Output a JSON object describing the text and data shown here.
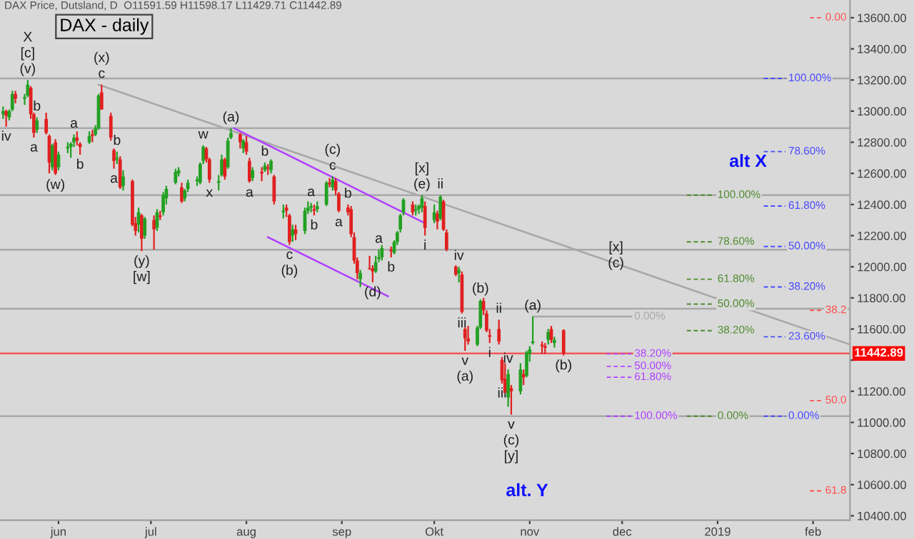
{
  "chart_data": {
    "type": "candlestick",
    "title": "DAX - daily",
    "subtitle": "DAX Price, Dutsland, D  O11591.59 H11598.17 L11429.71 C11442.89",
    "x": [
      "2018-05-14",
      "2018-05-15",
      "2018-05-16",
      "2018-05-17",
      "2018-05-18",
      "2018-05-21",
      "2018-05-22",
      "2018-05-23",
      "2018-05-24",
      "2018-05-25",
      "2018-05-28",
      "2018-05-29",
      "2018-05-30",
      "2018-05-31",
      "2018-06-01",
      "2018-06-04",
      "2018-06-05",
      "2018-06-06",
      "2018-06-07",
      "2018-06-08",
      "2018-06-11",
      "2018-06-12",
      "2018-06-13",
      "2018-06-14",
      "2018-06-15",
      "2018-06-18",
      "2018-06-19",
      "2018-06-20",
      "2018-06-21",
      "2018-06-22",
      "2018-06-25",
      "2018-06-26",
      "2018-06-27",
      "2018-06-28",
      "2018-06-29",
      "2018-07-02",
      "2018-07-03",
      "2018-07-04",
      "2018-07-05",
      "2018-07-06",
      "2018-07-09",
      "2018-07-10",
      "2018-07-11",
      "2018-07-12",
      "2018-07-13",
      "2018-07-16",
      "2018-07-17",
      "2018-07-18",
      "2018-07-19",
      "2018-07-20",
      "2018-07-23",
      "2018-07-24",
      "2018-07-25",
      "2018-07-26",
      "2018-07-27",
      "2018-07-30",
      "2018-07-31",
      "2018-08-01",
      "2018-08-02",
      "2018-08-03",
      "2018-08-06",
      "2018-08-07",
      "2018-08-08",
      "2018-08-09",
      "2018-08-10",
      "2018-08-13",
      "2018-08-14",
      "2018-08-15",
      "2018-08-16",
      "2018-08-17",
      "2018-08-20",
      "2018-08-21",
      "2018-08-22",
      "2018-08-23",
      "2018-08-24",
      "2018-08-27",
      "2018-08-28",
      "2018-08-29",
      "2018-08-30",
      "2018-08-31",
      "2018-09-03",
      "2018-09-04",
      "2018-09-05",
      "2018-09-06",
      "2018-09-07",
      "2018-09-10",
      "2018-09-11",
      "2018-09-12",
      "2018-09-13",
      "2018-09-14",
      "2018-09-17",
      "2018-09-18",
      "2018-09-19",
      "2018-09-20",
      "2018-09-21",
      "2018-09-24",
      "2018-09-25",
      "2018-09-26",
      "2018-09-27",
      "2018-09-28",
      "2018-10-01",
      "2018-10-02",
      "2018-10-03",
      "2018-10-04",
      "2018-10-05",
      "2018-10-08",
      "2018-10-09",
      "2018-10-10",
      "2018-10-11",
      "2018-10-12",
      "2018-10-15",
      "2018-10-16",
      "2018-10-17",
      "2018-10-18",
      "2018-10-19",
      "2018-10-22",
      "2018-10-23",
      "2018-10-24",
      "2018-10-25",
      "2018-10-26",
      "2018-10-29",
      "2018-10-30",
      "2018-10-31",
      "2018-11-01",
      "2018-11-02",
      "2018-11-05",
      "2018-11-06",
      "2018-11-07",
      "2018-11-08",
      "2018-11-09",
      "2018-11-12"
    ],
    "ohlc": [
      [
        12980,
        13030,
        12950,
        13000
      ],
      [
        13000,
        13010,
        12900,
        12970
      ],
      [
        12960,
        13010,
        12940,
        13000
      ],
      [
        13010,
        13130,
        13000,
        13110
      ],
      [
        13110,
        13130,
        13050,
        13080
      ],
      [
        13080,
        13110,
        13040,
        13090
      ],
      [
        13100,
        13200,
        13090,
        13170
      ],
      [
        13150,
        13160,
        12950,
        12980
      ],
      [
        12980,
        12990,
        12830,
        12860
      ],
      [
        12880,
        12960,
        12860,
        12940
      ],
      [
        12950,
        12990,
        12850,
        12860
      ],
      [
        12840,
        12850,
        12600,
        12670
      ],
      [
        12640,
        12790,
        12620,
        12780
      ],
      [
        12800,
        12820,
        12590,
        12600
      ],
      [
        12640,
        12740,
        12620,
        12720
      ],
      [
        12760,
        12800,
        12730,
        12770
      ],
      [
        12770,
        12800,
        12700,
        12790
      ],
      [
        12800,
        12850,
        12770,
        12830
      ],
      [
        12830,
        12870,
        12780,
        12810
      ],
      [
        12790,
        12800,
        12720,
        12770
      ],
      [
        12800,
        12870,
        12790,
        12840
      ],
      [
        12850,
        12880,
        12800,
        12840
      ],
      [
        12850,
        12910,
        12840,
        12890
      ],
      [
        12890,
        13110,
        12880,
        13100
      ],
      [
        13120,
        13170,
        13010,
        13010
      ],
      [
        12970,
        12990,
        12810,
        12830
      ],
      [
        12750,
        12760,
        12630,
        12680
      ],
      [
        12690,
        12740,
        12660,
        12700
      ],
      [
        12690,
        12710,
        12500,
        12510
      ],
      [
        12520,
        12620,
        12490,
        12580
      ],
      [
        12550,
        12560,
        12260,
        12270
      ],
      [
        12280,
        12320,
        12200,
        12230
      ],
      [
        12270,
        12380,
        12220,
        12350
      ],
      [
        12330,
        12340,
        12100,
        12180
      ],
      [
        12200,
        12320,
        12180,
        12310
      ],
      [
        12300,
        12330,
        12110,
        12240
      ],
      [
        12250,
        12370,
        12230,
        12350
      ],
      [
        12330,
        12360,
        12300,
        12320
      ],
      [
        12350,
        12480,
        12330,
        12460
      ],
      [
        12440,
        12520,
        12400,
        12500
      ],
      [
        12540,
        12630,
        12530,
        12610
      ],
      [
        12600,
        12640,
        12580,
        12620
      ],
      [
        12510,
        12540,
        12410,
        12420
      ],
      [
        12440,
        12500,
        12420,
        12490
      ],
      [
        12500,
        12560,
        12480,
        12540
      ],
      [
        12550,
        12580,
        12520,
        12560
      ],
      [
        12540,
        12670,
        12530,
        12660
      ],
      [
        12680,
        12780,
        12660,
        12770
      ],
      [
        12760,
        12770,
        12670,
        12690
      ],
      [
        12690,
        12700,
        12540,
        12560
      ],
      [
        12540,
        12590,
        12490,
        12550
      ],
      [
        12590,
        12720,
        12580,
        12690
      ],
      [
        12690,
        12700,
        12560,
        12580
      ],
      [
        12640,
        12830,
        12630,
        12810
      ],
      [
        12830,
        12890,
        12820,
        12860
      ],
      [
        12850,
        12860,
        12760,
        12800
      ],
      [
        12760,
        12820,
        12730,
        12810
      ],
      [
        12800,
        12840,
        12720,
        12740
      ],
      [
        12680,
        12700,
        12540,
        12550
      ],
      [
        12570,
        12640,
        12550,
        12620
      ],
      [
        12610,
        12640,
        12550,
        12600
      ],
      [
        12620,
        12670,
        12610,
        12650
      ],
      [
        12640,
        12660,
        12590,
        12630
      ],
      [
        12620,
        12690,
        12600,
        12680
      ],
      [
        12580,
        12590,
        12400,
        12420
      ],
      [
        12350,
        12400,
        12310,
        12360
      ],
      [
        12380,
        12400,
        12320,
        12360
      ],
      [
        12330,
        12340,
        12140,
        12160
      ],
      [
        12200,
        12270,
        12160,
        12240
      ],
      [
        12240,
        12270,
        12170,
        12210
      ],
      [
        12230,
        12380,
        12210,
        12360
      ],
      [
        12360,
        12420,
        12340,
        12380
      ],
      [
        12380,
        12410,
        12350,
        12390
      ],
      [
        12370,
        12400,
        12330,
        12360
      ],
      [
        12370,
        12420,
        12350,
        12390
      ],
      [
        12400,
        12550,
        12390,
        12540
      ],
      [
        12540,
        12570,
        12510,
        12530
      ],
      [
        12510,
        12580,
        12490,
        12560
      ],
      [
        12550,
        12570,
        12460,
        12490
      ],
      [
        12470,
        12480,
        12350,
        12360
      ],
      [
        12380,
        12400,
        12330,
        12350
      ],
      [
        12370,
        12390,
        12190,
        12210
      ],
      [
        12190,
        12220,
        12020,
        12040
      ],
      [
        12040,
        12060,
        11920,
        11960
      ],
      [
        11920,
        11980,
        11870,
        11960
      ],
      [
        11990,
        12070,
        11980,
        11985
      ],
      [
        11990,
        12010,
        11900,
        11970
      ],
      [
        11970,
        12070,
        11960,
        12030
      ],
      [
        12050,
        12110,
        12030,
        12060
      ],
      [
        12060,
        12140,
        12040,
        12120
      ],
      [
        12110,
        12130,
        12060,
        12100
      ],
      [
        12090,
        12170,
        12080,
        12160
      ],
      [
        12160,
        12230,
        12140,
        12220
      ],
      [
        12240,
        12340,
        12220,
        12330
      ],
      [
        12350,
        12440,
        12330,
        12430
      ],
      [
        12400,
        12420,
        12330,
        12350
      ],
      [
        12360,
        12400,
        12330,
        12370
      ],
      [
        12370,
        12400,
        12340,
        12390
      ],
      [
        12380,
        12460,
        12350,
        12440
      ],
      [
        12390,
        12420,
        12200,
        12250
      ],
      [
        12300,
        12400,
        12280,
        12350
      ],
      [
        12340,
        12360,
        12240,
        12290
      ],
      [
        12310,
        12460,
        12300,
        12450
      ],
      [
        12420,
        12430,
        12230,
        12240
      ],
      [
        12220,
        12240,
        12100,
        12110
      ],
      [
        12000,
        12010,
        11940,
        11950
      ],
      [
        11960,
        12000,
        11900,
        11980
      ],
      [
        11950,
        11970,
        11700,
        11710
      ],
      [
        11600,
        11610,
        11460,
        11540
      ],
      [
        11540,
        11620,
        11500,
        11520
      ],
      [
        11500,
        11620,
        11490,
        11610
      ],
      [
        11610,
        11790,
        11600,
        11780
      ],
      [
        11780,
        11800,
        11690,
        11720
      ],
      [
        11700,
        11720,
        11580,
        11590
      ],
      [
        11560,
        11600,
        11510,
        11550
      ],
      [
        11600,
        11660,
        11500,
        11520
      ],
      [
        11400,
        11420,
        11250,
        11270
      ],
      [
        11280,
        11380,
        11190,
        11190
      ],
      [
        11160,
        11340,
        11100,
        11310
      ],
      [
        11220,
        11240,
        11050,
        11200
      ],
      [
        11200,
        11380,
        11180,
        11340
      ],
      [
        11310,
        11340,
        11240,
        11290
      ],
      [
        11300,
        11460,
        11290,
        11450
      ],
      [
        11440,
        11490,
        11390,
        11470
      ],
      [
        11510,
        11680,
        11500,
        11520
      ],
      [
        11500,
        11520,
        11440,
        11490
      ],
      [
        11490,
        11510,
        11440,
        11480
      ],
      [
        11530,
        11600,
        11500,
        11580
      ],
      [
        11600,
        11620,
        11510,
        11530
      ],
      [
        11510,
        11550,
        11480,
        11530
      ],
      [
        11591.59,
        11598.17,
        11429.71,
        11442.89
      ]
    ],
    "colors": [
      "#22a022",
      "#e02020",
      "#22a022",
      "#22a022",
      "#e02020",
      "#22a022",
      "#22a022",
      "#e02020",
      "#e02020",
      "#22a022",
      "#e02020",
      "#e02020",
      "#22a022",
      "#e02020",
      "#22a022",
      "#22a022",
      "#22a022",
      "#22a022",
      "#e02020",
      "#e02020",
      "#22a022",
      "#e02020",
      "#22a022",
      "#22a022",
      "#e02020",
      "#e02020",
      "#e02020",
      "#22a022",
      "#e02020",
      "#22a022",
      "#e02020",
      "#e02020",
      "#22a022",
      "#e02020",
      "#22a022",
      "#e02020",
      "#22a022",
      "#e02020",
      "#22a022",
      "#22a022",
      "#22a022",
      "#22a022",
      "#e02020",
      "#22a022",
      "#22a022",
      "#22a022",
      "#22a022",
      "#22a022",
      "#e02020",
      "#e02020",
      "#22a022",
      "#22a022",
      "#e02020",
      "#22a022",
      "#22a022",
      "#e02020",
      "#22a022",
      "#e02020",
      "#e02020",
      "#22a022",
      "#e02020",
      "#22a022",
      "#e02020",
      "#22a022",
      "#e02020",
      "#22a022",
      "#e02020",
      "#e02020",
      "#22a022",
      "#e02020",
      "#22a022",
      "#22a022",
      "#22a022",
      "#e02020",
      "#22a022",
      "#22a022",
      "#e02020",
      "#22a022",
      "#e02020",
      "#e02020",
      "#e02020",
      "#e02020",
      "#e02020",
      "#e02020",
      "#22a022",
      "#e02020",
      "#e02020",
      "#22a022",
      "#22a022",
      "#22a022",
      "#e02020",
      "#22a022",
      "#22a022",
      "#22a022",
      "#22a022",
      "#e02020",
      "#22a022",
      "#22a022",
      "#22a022",
      "#e02020",
      "#22a022",
      "#e02020",
      "#22a022",
      "#e02020",
      "#e02020",
      "#e02020",
      "#22a022",
      "#e02020",
      "#e02020",
      "#e02020",
      "#22a022",
      "#22a022",
      "#e02020",
      "#e02020",
      "#e02020",
      "#e02020",
      "#e02020",
      "#e02020",
      "#22a022",
      "#e02020",
      "#22a022",
      "#e02020",
      "#22a022",
      "#22a022",
      "#22a022",
      "#e02020",
      "#e02020",
      "#22a022",
      "#e02020",
      "#22a022",
      "#e02020"
    ],
    "series": [
      {
        "type": "line",
        "x": [
          "2018-06-14",
          "2018-11-29",
          "2019-02-13"
        ],
        "values": [
          13170,
          12020,
          11500
        ],
        "color": "#a8a8a8"
      },
      {
        "type": "line",
        "x": [
          "2018-07-28",
          "2018-09-28"
        ],
        "values": [
          12890,
          12280
        ],
        "color": "#b040ff"
      },
      {
        "type": "line",
        "x": [
          "2018-08-08",
          "2018-09-16"
        ],
        "values": [
          12190,
          11810
        ],
        "color": "#b040ff"
      },
      {
        "type": "line",
        "x": [
          "2018-12-22",
          "2018-12-31"
        ],
        "values": [
          12460,
          12460
        ],
        "color": "#4f8a2e",
        "line_style": "dashed"
      },
      {
        "type": "line",
        "x": [
          "2018-12-22",
          "2018-12-31"
        ],
        "values": [
          12160,
          12160
        ],
        "color": "#4f8a2e",
        "line_style": "dashed"
      },
      {
        "type": "line",
        "x": [
          "2018-12-22",
          "2018-12-31"
        ],
        "values": [
          11920,
          11920
        ],
        "color": "#4f8a2e",
        "line_style": "dashed"
      },
      {
        "type": "line",
        "x": [
          "2018-12-22",
          "2018-12-31"
        ],
        "values": [
          11760,
          11760
        ],
        "color": "#4f8a2e",
        "line_style": "dashed"
      },
      {
        "type": "line",
        "x": [
          "2018-12-22",
          "2018-12-31"
        ],
        "values": [
          11590,
          11590
        ],
        "color": "#4f8a2e",
        "line_style": "dashed"
      },
      {
        "type": "line",
        "x": [
          "2018-12-22",
          "2018-12-31"
        ],
        "values": [
          11040,
          11040
        ],
        "color": "#4f8a2e",
        "line_style": "dashed"
      },
      {
        "type": "line",
        "x": [
          "2018-11-02",
          "2018-12-04"
        ],
        "values": [
          11680,
          11680
        ],
        "color": "#a8a8a8"
      },
      {
        "type": "line",
        "x": [
          "2018-11-26",
          "2018-12-04"
        ],
        "values": [
          11440,
          11440
        ],
        "color": "#b040ff",
        "line_style": "dashed"
      },
      {
        "type": "line",
        "x": [
          "2018-11-26",
          "2018-12-04"
        ],
        "values": [
          11360,
          11360
        ],
        "color": "#b040ff",
        "line_style": "dashed"
      },
      {
        "type": "line",
        "x": [
          "2018-11-26",
          "2018-12-04"
        ],
        "values": [
          11290,
          11290
        ],
        "color": "#b040ff",
        "line_style": "dashed"
      },
      {
        "type": "line",
        "x": [
          "2018-11-26",
          "2018-12-04"
        ],
        "values": [
          11040,
          11040
        ],
        "color": "#b040ff",
        "line_style": "dashed"
      },
      {
        "type": "line",
        "x": [
          "2019-01-16",
          "2019-01-23"
        ],
        "values": [
          13210,
          13210
        ],
        "color": "#4a4aff",
        "line_style": "dashed"
      },
      {
        "type": "line",
        "x": [
          "2019-01-16",
          "2019-01-23"
        ],
        "values": [
          12740,
          12740
        ],
        "color": "#4a4aff",
        "line_style": "dashed"
      },
      {
        "type": "line",
        "x": [
          "2019-01-16",
          "2019-01-23"
        ],
        "values": [
          12390,
          12390
        ],
        "color": "#4a4aff",
        "line_style": "dashed"
      },
      {
        "type": "line",
        "x": [
          "2019-01-16",
          "2019-01-23"
        ],
        "values": [
          12130,
          12130
        ],
        "color": "#4a4aff",
        "line_style": "dashed"
      },
      {
        "type": "line",
        "x": [
          "2019-01-16",
          "2019-01-23"
        ],
        "values": [
          11870,
          11870
        ],
        "color": "#4a4aff",
        "line_style": "dashed"
      },
      {
        "type": "line",
        "x": [
          "2019-01-16",
          "2019-01-23"
        ],
        "values": [
          11550,
          11550
        ],
        "color": "#4a4aff",
        "line_style": "dashed"
      },
      {
        "type": "line",
        "x": [
          "2019-01-16",
          "2019-01-23"
        ],
        "values": [
          11040,
          11040
        ],
        "color": "#4a4aff",
        "line_style": "dashed"
      },
      {
        "type": "line",
        "x": [
          "2019-01-31",
          "2019-02-04"
        ],
        "values": [
          13600,
          13600
        ],
        "color": "#ff5050",
        "line_style": "dashed"
      },
      {
        "type": "line",
        "x": [
          "2019-01-31",
          "2019-02-04"
        ],
        "values": [
          11720,
          11720
        ],
        "color": "#ff5050",
        "line_style": "dashed"
      },
      {
        "type": "line",
        "x": [
          "2019-01-31",
          "2019-02-04"
        ],
        "values": [
          11140,
          11140
        ],
        "color": "#ff5050",
        "line_style": "dashed"
      },
      {
        "type": "line",
        "x": [
          "2019-01-31",
          "2019-02-04"
        ],
        "values": [
          10560,
          10560
        ],
        "color": "#ff5050",
        "line_style": "dashed"
      }
    ],
    "xlim": [
      "2018-05-13",
      "2019-02-13"
    ],
    "xticks": [
      {
        "value": "2018-06-01",
        "label": "jun"
      },
      {
        "value": "2018-07-01",
        "label": "jul"
      },
      {
        "value": "2018-08-01",
        "label": "aug"
      },
      {
        "value": "2018-09-01",
        "label": "sep"
      },
      {
        "value": "2018-10-01",
        "label": "Okt"
      },
      {
        "value": "2018-11-01",
        "label": "nov"
      },
      {
        "value": "2018-12-01",
        "label": "dec"
      },
      {
        "value": "2019-01-01",
        "label": "2019"
      },
      {
        "value": "2019-02-01",
        "label": "feb"
      }
    ],
    "ylim": [
      10372,
      13714
    ],
    "yticks": [
      {
        "value": 10400,
        "label": "10400.00"
      },
      {
        "value": 10600,
        "label": "10600.00"
      },
      {
        "value": 10800,
        "label": "10800.00"
      },
      {
        "value": 11000,
        "label": "11000.00"
      },
      {
        "value": 11200,
        "label": "11200.00"
      },
      {
        "value": 11400,
        "label": null
      },
      {
        "value": 11600,
        "label": "11600.00"
      },
      {
        "value": 11800,
        "label": "11800.00"
      },
      {
        "value": 12000,
        "label": "12000.00"
      },
      {
        "value": 12200,
        "label": "12200.00"
      },
      {
        "value": 12400,
        "label": "12400.00"
      },
      {
        "value": 12600,
        "label": "12600.00"
      },
      {
        "value": 12800,
        "label": "12800.00"
      },
      {
        "value": 13000,
        "label": "13000.00"
      },
      {
        "value": 13200,
        "label": "13200.00"
      },
      {
        "value": 13400,
        "label": "13400.00"
      },
      {
        "value": 13600,
        "label": "13600.00"
      }
    ],
    "ref_lines": [
      {
        "axis": "y",
        "value": 13210,
        "color": "#a8a8a8"
      },
      {
        "axis": "y",
        "value": 12890,
        "color": "#a8a8a8"
      },
      {
        "axis": "y",
        "value": 12460,
        "color": "#a8a8a8"
      },
      {
        "axis": "y",
        "value": 12110,
        "color": "#a8a8a8"
      },
      {
        "axis": "y",
        "value": 11730,
        "color": "#a8a8a8"
      },
      {
        "axis": "y",
        "value": 11040,
        "color": "#a8a8a8"
      },
      {
        "axis": "y",
        "value": 11442.89,
        "label": "11442.89",
        "color": "#ff0000"
      }
    ],
    "annotations": [
      {
        "text": "(v)",
        "x": "2018-05-22",
        "y": 13200
      },
      {
        "text": "[c]",
        "x": "2018-05-22",
        "y": 13200
      },
      {
        "text": "X",
        "x": "2018-05-22",
        "y": 13200
      },
      {
        "text": "iv",
        "x": "2018-05-15",
        "y": 12900
      },
      {
        "text": "b",
        "x": "2018-05-25",
        "y": 12960
      },
      {
        "text": "a",
        "x": "2018-05-24",
        "y": 12830
      },
      {
        "text": "(w)",
        "x": "2018-05-31",
        "y": 12590
      },
      {
        "text": "a",
        "x": "2018-06-06",
        "y": 12850
      },
      {
        "text": "b",
        "x": "2018-06-08",
        "y": 12720
      },
      {
        "text": "c",
        "x": "2018-06-15",
        "y": 13170
      },
      {
        "text": "(x)",
        "x": "2018-06-15",
        "y": 13170
      },
      {
        "text": "b",
        "x": "2018-06-20",
        "y": 12740
      },
      {
        "text": "a",
        "x": "2018-06-19",
        "y": 12630
      },
      {
        "text": "(y)",
        "x": "2018-06-28",
        "y": 12100
      },
      {
        "text": "[w]",
        "x": "2018-06-28",
        "y": 12100
      },
      {
        "text": "w",
        "x": "2018-07-18",
        "y": 12780
      },
      {
        "text": "x",
        "x": "2018-07-20",
        "y": 12540
      },
      {
        "text": "(a)",
        "x": "2018-07-27",
        "y": 12890
      },
      {
        "text": "b",
        "x": "2018-08-07",
        "y": 12670
      },
      {
        "text": "a",
        "x": "2018-08-02",
        "y": 12540
      },
      {
        "text": "c",
        "x": "2018-08-29",
        "y": 12580
      },
      {
        "text": "(c)",
        "x": "2018-08-29",
        "y": 12580
      },
      {
        "text": "a",
        "x": "2018-08-22",
        "y": 12410
      },
      {
        "text": "b",
        "x": "2018-08-23",
        "y": 12330
      },
      {
        "text": "b",
        "x": "2018-09-03",
        "y": 12400
      },
      {
        "text": "a",
        "x": "2018-08-31",
        "y": 12350
      },
      {
        "text": "c",
        "x": "2018-08-15",
        "y": 12140
      },
      {
        "text": "(b)",
        "x": "2018-08-15",
        "y": 12140
      },
      {
        "text": "a",
        "x": "2018-09-13",
        "y": 12110
      },
      {
        "text": "b",
        "x": "2018-09-17",
        "y": 12060
      },
      {
        "text": "(d)",
        "x": "2018-09-11",
        "y": 11900
      },
      {
        "text": "(e)",
        "x": "2018-09-27",
        "y": 12460
      },
      {
        "text": "[x]",
        "x": "2018-09-27",
        "y": 12460
      },
      {
        "text": "ii",
        "x": "2018-10-03",
        "y": 12460
      },
      {
        "text": "i",
        "x": "2018-09-28",
        "y": 12200
      },
      {
        "text": "iv",
        "x": "2018-10-09",
        "y": 12000
      },
      {
        "text": "iii",
        "x": "2018-10-10",
        "y": 11700
      },
      {
        "text": "v",
        "x": "2018-10-11",
        "y": 11460
      },
      {
        "text": "(a)",
        "x": "2018-10-11",
        "y": 11460
      },
      {
        "text": "(b)",
        "x": "2018-10-16",
        "y": 11790
      },
      {
        "text": "ii",
        "x": "2018-10-22",
        "y": 11660
      },
      {
        "text": "i",
        "x": "2018-10-19",
        "y": 11510
      },
      {
        "text": "iv",
        "x": "2018-10-25",
        "y": 11340
      },
      {
        "text": "iii",
        "x": "2018-10-23",
        "y": 11250
      },
      {
        "text": "v",
        "x": "2018-10-26",
        "y": 11050
      },
      {
        "text": "(c)",
        "x": "2018-10-26",
        "y": 11050
      },
      {
        "text": "[y]",
        "x": "2018-10-26",
        "y": 11050
      },
      "alt. Y",
      {
        "text": "(a)",
        "x": "2018-11-02",
        "y": 11680
      },
      {
        "text": "(b)",
        "x": "2018-11-12",
        "y": 11429.71
      },
      {
        "text": "(c)",
        "x": "2018-11-29",
        "y": 12020
      },
      {
        "text": "[x]",
        "x": "2018-11-29",
        "y": 12020
      },
      "alt X",
      {
        "text": "100.00%",
        "x": "2018-12-31",
        "y": 12460
      },
      {
        "text": "78.60%",
        "x": "2018-12-31",
        "y": 12160
      },
      {
        "text": "61.80%",
        "x": "2018-12-31",
        "y": 11920
      },
      {
        "text": "50.00%",
        "x": "2018-12-31",
        "y": 11760
      },
      {
        "text": "38.20%",
        "x": "2018-12-31",
        "y": 11590
      },
      {
        "text": "0.00%",
        "x": "2018-12-31",
        "y": 11040
      },
      {
        "text": "0.00%",
        "x": "2018-12-04",
        "y": 11680
      },
      {
        "text": "38.20%",
        "x": "2018-12-04",
        "y": 11440
      },
      {
        "text": "50.00%",
        "x": "2018-12-04",
        "y": 11360
      },
      {
        "text": "61.80%",
        "x": "2018-12-04",
        "y": 11290
      },
      {
        "text": "100.00%",
        "x": "2018-12-04",
        "y": 11040
      },
      {
        "text": "100.00%",
        "x": "2019-01-23",
        "y": 13210
      },
      {
        "text": "78.60%",
        "x": "2019-01-23",
        "y": 12740
      },
      {
        "text": "61.80%",
        "x": "2019-01-23",
        "y": 12390
      },
      {
        "text": "50.00%",
        "x": "2019-01-23",
        "y": 12130
      },
      {
        "text": "38.20%",
        "x": "2019-01-23",
        "y": 11870
      },
      {
        "text": "23.60%",
        "x": "2019-01-23",
        "y": 11550
      },
      {
        "text": "0.00%",
        "x": "2019-01-23",
        "y": 11040
      },
      {
        "text": "0.00",
        "x": "2019-02-04",
        "y": 13600
      },
      {
        "text": "38.2",
        "x": "2019-02-04",
        "y": 11720
      },
      {
        "text": "50.0",
        "x": "2019-02-04",
        "y": 11140
      },
      {
        "text": "61.8",
        "x": "2019-02-04",
        "y": 10560
      }
    ]
  }
}
